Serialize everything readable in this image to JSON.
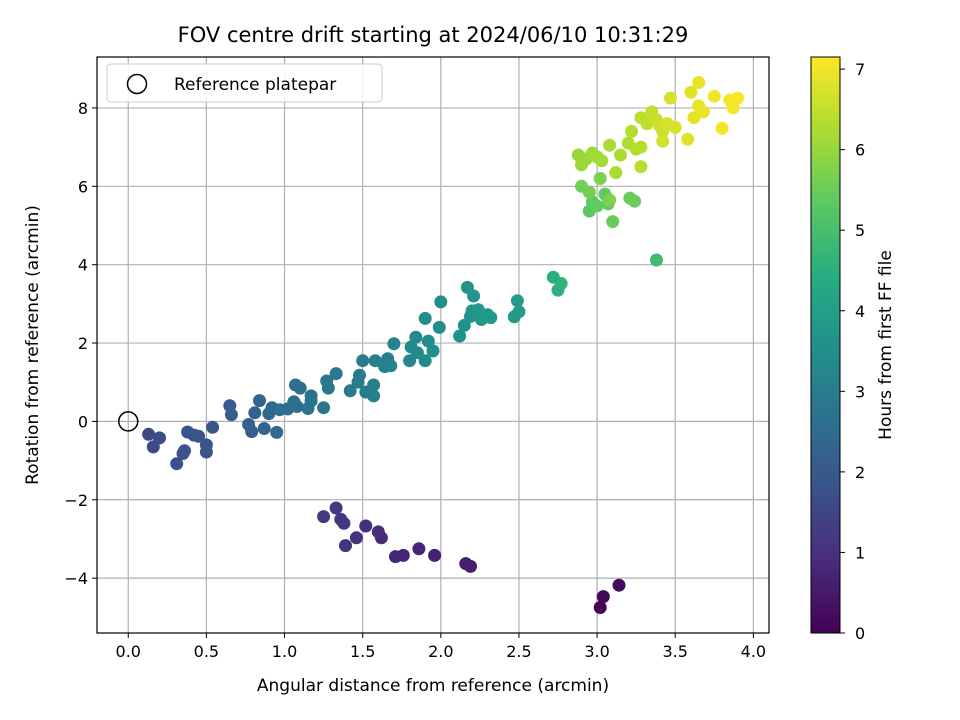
{
  "chart_data": {
    "type": "scatter",
    "title": "FOV centre drift starting at 2024/06/10 10:31:29",
    "xlabel": "Angular distance from reference (arcmin)",
    "ylabel": "Rotation from reference (arcmin)",
    "xlim": [
      -0.2,
      4.1
    ],
    "ylim": [
      -5.4,
      9.3
    ],
    "xticks": [
      "0.0",
      "0.5",
      "1.0",
      "1.5",
      "2.0",
      "2.5",
      "3.0",
      "3.5",
      "4.0"
    ],
    "yticks": [
      "−4",
      "−2",
      "0",
      "2",
      "4",
      "6",
      "8"
    ],
    "grid": true,
    "legend": {
      "position": "top-left",
      "entries": [
        {
          "label": "Reference platepar",
          "marker": "hollow-circle"
        }
      ]
    },
    "colorbar": {
      "label": "Hours from first FF file",
      "range": [
        0,
        7.15
      ],
      "ticks": [
        "0",
        "1",
        "2",
        "3",
        "4",
        "5",
        "6",
        "7"
      ],
      "colormap": "viridis"
    },
    "reference_point": {
      "x": 0,
      "y": 0
    },
    "points": [
      [
        3.02,
        -4.75,
        0.05
      ],
      [
        3.04,
        -4.47,
        0.12
      ],
      [
        3.14,
        -4.18,
        0.2
      ],
      [
        2.16,
        -3.63,
        0.55
      ],
      [
        2.19,
        -3.7,
        0.6
      ],
      [
        1.96,
        -3.42,
        0.65
      ],
      [
        1.86,
        -3.25,
        0.7
      ],
      [
        1.76,
        -3.42,
        0.75
      ],
      [
        1.71,
        -3.45,
        0.8
      ],
      [
        1.62,
        -2.97,
        0.85
      ],
      [
        1.6,
        -2.82,
        0.9
      ],
      [
        1.52,
        -2.67,
        0.95
      ],
      [
        1.46,
        -2.97,
        1.0
      ],
      [
        1.39,
        -3.17,
        1.05
      ],
      [
        1.38,
        -2.6,
        1.1
      ],
      [
        1.36,
        -2.5,
        1.12
      ],
      [
        1.33,
        -2.21,
        1.15
      ],
      [
        1.25,
        -2.43,
        1.2
      ],
      [
        0.13,
        -0.33,
        1.6
      ],
      [
        0.16,
        -0.65,
        1.65
      ],
      [
        0.2,
        -0.42,
        1.7
      ],
      [
        0.31,
        -1.08,
        1.75
      ],
      [
        0.35,
        -0.82,
        1.78
      ],
      [
        0.36,
        -0.75,
        1.8
      ],
      [
        0.38,
        -0.27,
        1.82
      ],
      [
        0.42,
        -0.35,
        1.84
      ],
      [
        0.45,
        -0.38,
        1.86
      ],
      [
        0.5,
        -0.6,
        1.88
      ],
      [
        0.5,
        -0.78,
        1.9
      ],
      [
        0.54,
        -0.15,
        1.95
      ],
      [
        0.65,
        0.4,
        2.05
      ],
      [
        0.66,
        0.17,
        2.1
      ],
      [
        0.77,
        -0.08,
        2.15
      ],
      [
        0.79,
        -0.26,
        2.2
      ],
      [
        0.81,
        0.22,
        2.25
      ],
      [
        0.84,
        0.53,
        2.3
      ],
      [
        0.87,
        -0.18,
        2.35
      ],
      [
        0.9,
        0.2,
        2.4
      ],
      [
        0.92,
        0.35,
        2.42
      ],
      [
        0.95,
        -0.28,
        2.45
      ],
      [
        0.97,
        0.3,
        2.5
      ],
      [
        1.02,
        0.32,
        2.55
      ],
      [
        1.06,
        0.5,
        2.58
      ],
      [
        1.07,
        0.93,
        2.6
      ],
      [
        1.1,
        0.85,
        2.62
      ],
      [
        1.08,
        0.38,
        2.65
      ],
      [
        1.15,
        0.33,
        2.7
      ],
      [
        1.17,
        0.52,
        2.72
      ],
      [
        1.17,
        0.65,
        2.75
      ],
      [
        1.25,
        0.35,
        2.8
      ],
      [
        1.27,
        1.03,
        2.82
      ],
      [
        1.28,
        0.85,
        2.85
      ],
      [
        1.33,
        1.22,
        2.88
      ],
      [
        1.42,
        0.78,
        2.9
      ],
      [
        1.47,
        1.0,
        2.92
      ],
      [
        1.48,
        1.18,
        2.95
      ],
      [
        1.5,
        1.55,
        2.98
      ],
      [
        1.52,
        0.75,
        3.0
      ],
      [
        1.57,
        0.93,
        3.02
      ],
      [
        1.57,
        0.65,
        3.05
      ],
      [
        1.58,
        1.55,
        3.08
      ],
      [
        1.64,
        1.4,
        3.1
      ],
      [
        1.66,
        1.6,
        3.12
      ],
      [
        1.68,
        1.42,
        3.15
      ],
      [
        1.7,
        1.98,
        3.18
      ],
      [
        1.8,
        1.55,
        3.3
      ],
      [
        1.81,
        1.9,
        3.32
      ],
      [
        1.84,
        2.15,
        3.35
      ],
      [
        1.85,
        1.75,
        3.38
      ],
      [
        1.9,
        1.55,
        3.4
      ],
      [
        1.9,
        2.63,
        3.42
      ],
      [
        1.92,
        2.05,
        3.45
      ],
      [
        1.95,
        1.8,
        3.48
      ],
      [
        1.99,
        2.4,
        3.5
      ],
      [
        2.0,
        3.05,
        3.55
      ],
      [
        2.12,
        2.18,
        3.6
      ],
      [
        2.15,
        2.45,
        3.62
      ],
      [
        2.17,
        3.42,
        3.65
      ],
      [
        2.19,
        2.68,
        3.68
      ],
      [
        2.2,
        2.82,
        3.7
      ],
      [
        2.21,
        3.2,
        3.72
      ],
      [
        2.24,
        2.85,
        3.75
      ],
      [
        2.26,
        2.6,
        3.78
      ],
      [
        2.3,
        2.72,
        3.8
      ],
      [
        2.32,
        2.65,
        3.82
      ],
      [
        2.47,
        2.67,
        3.85
      ],
      [
        2.49,
        3.08,
        3.88
      ],
      [
        2.5,
        2.8,
        3.9
      ],
      [
        2.72,
        3.68,
        4.5
      ],
      [
        2.75,
        3.35,
        4.55
      ],
      [
        2.77,
        3.52,
        4.6
      ],
      [
        3.38,
        4.12,
        4.9
      ],
      [
        2.95,
        5.37,
        5.3
      ],
      [
        2.97,
        5.6,
        5.35
      ],
      [
        3.0,
        5.5,
        5.4
      ],
      [
        3.05,
        5.8,
        5.42
      ],
      [
        3.07,
        5.55,
        5.45
      ],
      [
        3.1,
        5.1,
        5.48
      ],
      [
        3.21,
        5.7,
        5.5
      ],
      [
        3.24,
        5.62,
        5.52
      ],
      [
        2.9,
        6.0,
        5.6
      ],
      [
        2.95,
        5.85,
        5.62
      ],
      [
        3.02,
        6.2,
        5.7
      ],
      [
        3.08,
        5.65,
        5.72
      ],
      [
        2.88,
        6.8,
        6.0
      ],
      [
        2.9,
        6.55,
        6.05
      ],
      [
        2.93,
        6.7,
        6.08
      ],
      [
        2.97,
        6.85,
        6.1
      ],
      [
        3.0,
        6.75,
        6.12
      ],
      [
        3.03,
        6.65,
        6.15
      ],
      [
        3.08,
        7.05,
        6.2
      ],
      [
        3.12,
        6.35,
        6.22
      ],
      [
        3.15,
        6.8,
        6.25
      ],
      [
        3.2,
        7.1,
        6.28
      ],
      [
        3.22,
        7.4,
        6.3
      ],
      [
        3.25,
        6.95,
        6.32
      ],
      [
        3.28,
        7.0,
        6.35
      ],
      [
        3.28,
        6.5,
        6.38
      ],
      [
        3.28,
        7.75,
        6.4
      ],
      [
        3.32,
        7.6,
        6.45
      ],
      [
        3.35,
        7.9,
        6.5
      ],
      [
        3.38,
        7.7,
        6.55
      ],
      [
        3.4,
        7.55,
        6.6
      ],
      [
        3.42,
        7.4,
        6.65
      ],
      [
        3.42,
        7.15,
        6.68
      ],
      [
        3.45,
        7.6,
        6.7
      ],
      [
        3.47,
        8.25,
        6.72
      ],
      [
        3.5,
        7.5,
        6.75
      ],
      [
        3.58,
        7.2,
        6.8
      ],
      [
        3.6,
        8.4,
        6.85
      ],
      [
        3.62,
        7.75,
        6.88
      ],
      [
        3.65,
        8.65,
        6.9
      ],
      [
        3.65,
        8.05,
        6.92
      ],
      [
        3.68,
        7.9,
        6.95
      ],
      [
        3.75,
        8.3,
        7.0
      ],
      [
        3.8,
        7.48,
        7.02
      ],
      [
        3.85,
        8.2,
        7.05
      ],
      [
        3.87,
        8.0,
        7.08
      ],
      [
        3.9,
        8.25,
        7.1
      ]
    ]
  }
}
